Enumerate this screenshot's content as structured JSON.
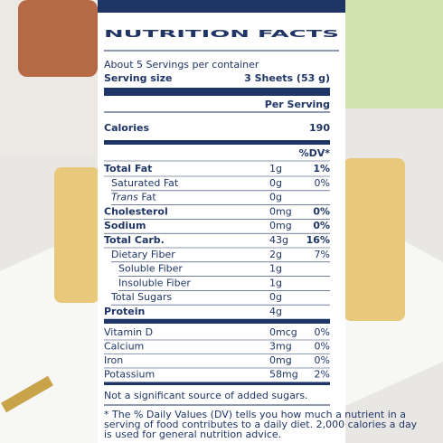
{
  "header": {
    "title": "NUTRITION FACTS",
    "servings": "About 5 Servings per container",
    "serving_size_label": "Serving size",
    "serving_size_value": "3 Sheets (53 g)",
    "per_serving": "Per Serving",
    "calories_label": "Calories",
    "calories_value": "190",
    "dv_header": "%DV*"
  },
  "nutrients": [
    {
      "name": "Total Fat",
      "amount": "1g",
      "dv": "1%",
      "bold": true,
      "level": 0
    },
    {
      "name": "Saturated Fat",
      "amount": "0g",
      "dv": "0%",
      "bold": false,
      "level": 1
    },
    {
      "italic": "Trans",
      "name": "Fat",
      "amount": "0g",
      "bold": false,
      "level": 1
    },
    {
      "name": "Cholesterol",
      "amount": "0mg",
      "dv": "0%",
      "bold": true,
      "level": 0
    },
    {
      "name": "Sodium",
      "amount": "0mg",
      "dv": "0%",
      "bold": true,
      "level": 0
    },
    {
      "name": "Total Carb.",
      "amount": "43g",
      "dv": "16%",
      "bold": true,
      "level": 0
    },
    {
      "name": "Dietary Fiber",
      "amount": "2g",
      "dv": "7%",
      "bold": false,
      "level": 1
    },
    {
      "name": "Soluble Fiber",
      "amount": "1g",
      "bold": false,
      "level": 2
    },
    {
      "name": "Insoluble Fiber",
      "amount": "1g",
      "bold": false,
      "level": 2
    },
    {
      "name": "Total Sugars",
      "amount": "0g",
      "bold": false,
      "level": 1
    },
    {
      "name": "Protein",
      "amount": "4g",
      "bold": true,
      "level": 0
    }
  ],
  "vitamins": [
    {
      "name": "Vitamin D",
      "amount": "0mcg",
      "dv": "0%"
    },
    {
      "name": "Calcium",
      "amount": "3mg",
      "dv": "0%"
    },
    {
      "name": "Iron",
      "amount": "0mg",
      "dv": "0%"
    },
    {
      "name": "Potassium",
      "amount": "58mg",
      "dv": "2%"
    }
  ],
  "note": "Not a significant source of added sugars.",
  "footnote": [
    "* The % Daily Values (DV) tells you how much a nutrient in a",
    "serving of food contributes to a daily diet. 2,000 calories a day",
    "is used for general nutrition advice."
  ]
}
